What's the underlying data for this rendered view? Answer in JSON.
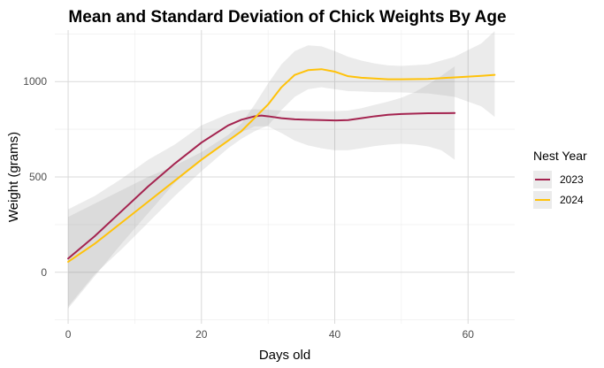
{
  "chart_data": {
    "type": "line",
    "title": "Mean and Standard Deviation of Chick Weights By Age",
    "xlabel": "Days old",
    "ylabel": "Weight (grams)",
    "xlim": [
      -2,
      67
    ],
    "ylim": [
      -270,
      1270
    ],
    "x_ticks": [
      0,
      20,
      40,
      60
    ],
    "y_ticks": [
      0,
      500,
      1000
    ],
    "grid": true,
    "legend": {
      "title": "Nest Year",
      "position": "right"
    },
    "series": [
      {
        "name": "2023",
        "color": "#A4234F",
        "points": [
          [
            0,
            72
          ],
          [
            4,
            190
          ],
          [
            8,
            320
          ],
          [
            12,
            450
          ],
          [
            16,
            570
          ],
          [
            20,
            680
          ],
          [
            24,
            770
          ],
          [
            26,
            800
          ],
          [
            28,
            818
          ],
          [
            29,
            822
          ],
          [
            30,
            818
          ],
          [
            32,
            808
          ],
          [
            34,
            802
          ],
          [
            36,
            800
          ],
          [
            38,
            798
          ],
          [
            40,
            796
          ],
          [
            42,
            798
          ],
          [
            44,
            808
          ],
          [
            46,
            818
          ],
          [
            48,
            826
          ],
          [
            50,
            830
          ],
          [
            54,
            834
          ],
          [
            58,
            835
          ]
        ],
        "ribbon_upper": [
          [
            0,
            330
          ],
          [
            4,
            400
          ],
          [
            8,
            490
          ],
          [
            12,
            590
          ],
          [
            16,
            670
          ],
          [
            20,
            770
          ],
          [
            24,
            830
          ],
          [
            26,
            850
          ],
          [
            28,
            855
          ],
          [
            30,
            852
          ],
          [
            32,
            848
          ],
          [
            34,
            846
          ],
          [
            36,
            845
          ],
          [
            38,
            845
          ],
          [
            40,
            845
          ],
          [
            42,
            848
          ],
          [
            44,
            860
          ],
          [
            46,
            878
          ],
          [
            48,
            895
          ],
          [
            50,
            915
          ],
          [
            52,
            945
          ],
          [
            54,
            985
          ],
          [
            56,
            1030
          ],
          [
            58,
            1080
          ]
        ],
        "ribbon_lower": [
          [
            0,
            -190
          ],
          [
            4,
            -20
          ],
          [
            8,
            150
          ],
          [
            12,
            310
          ],
          [
            16,
            470
          ],
          [
            20,
            590
          ],
          [
            24,
            690
          ],
          [
            26,
            735
          ],
          [
            28,
            765
          ],
          [
            30,
            765
          ],
          [
            32,
            730
          ],
          [
            34,
            690
          ],
          [
            36,
            665
          ],
          [
            38,
            650
          ],
          [
            40,
            640
          ],
          [
            42,
            640
          ],
          [
            44,
            650
          ],
          [
            46,
            662
          ],
          [
            48,
            670
          ],
          [
            50,
            674
          ],
          [
            52,
            670
          ],
          [
            54,
            660
          ],
          [
            56,
            640
          ],
          [
            58,
            590
          ]
        ]
      },
      {
        "name": "2024",
        "color": "#FFC20A",
        "points": [
          [
            0,
            55
          ],
          [
            4,
            150
          ],
          [
            8,
            260
          ],
          [
            12,
            370
          ],
          [
            16,
            480
          ],
          [
            20,
            590
          ],
          [
            24,
            690
          ],
          [
            26,
            740
          ],
          [
            28,
            810
          ],
          [
            30,
            880
          ],
          [
            32,
            970
          ],
          [
            34,
            1035
          ],
          [
            36,
            1060
          ],
          [
            38,
            1065
          ],
          [
            40,
            1052
          ],
          [
            42,
            1028
          ],
          [
            44,
            1020
          ],
          [
            46,
            1016
          ],
          [
            48,
            1012
          ],
          [
            50,
            1012
          ],
          [
            54,
            1014
          ],
          [
            58,
            1022
          ],
          [
            62,
            1030
          ],
          [
            64,
            1035
          ]
        ],
        "ribbon_upper": [
          [
            0,
            290
          ],
          [
            4,
            360
          ],
          [
            8,
            430
          ],
          [
            12,
            500
          ],
          [
            16,
            560
          ],
          [
            20,
            630
          ],
          [
            24,
            720
          ],
          [
            26,
            780
          ],
          [
            28,
            880
          ],
          [
            30,
            990
          ],
          [
            32,
            1090
          ],
          [
            34,
            1160
          ],
          [
            36,
            1190
          ],
          [
            38,
            1185
          ],
          [
            40,
            1160
          ],
          [
            42,
            1130
          ],
          [
            44,
            1110
          ],
          [
            46,
            1095
          ],
          [
            48,
            1085
          ],
          [
            50,
            1082
          ],
          [
            54,
            1090
          ],
          [
            58,
            1130
          ],
          [
            62,
            1200
          ],
          [
            64,
            1265
          ]
        ],
        "ribbon_lower": [
          [
            0,
            -180
          ],
          [
            4,
            -10
          ],
          [
            8,
            120
          ],
          [
            12,
            260
          ],
          [
            16,
            400
          ],
          [
            20,
            530
          ],
          [
            24,
            650
          ],
          [
            26,
            700
          ],
          [
            28,
            740
          ],
          [
            30,
            770
          ],
          [
            32,
            850
          ],
          [
            34,
            920
          ],
          [
            36,
            960
          ],
          [
            38,
            970
          ],
          [
            40,
            960
          ],
          [
            42,
            950
          ],
          [
            44,
            948
          ],
          [
            46,
            945
          ],
          [
            48,
            944
          ],
          [
            50,
            943
          ],
          [
            54,
            938
          ],
          [
            58,
            920
          ],
          [
            62,
            870
          ],
          [
            64,
            815
          ]
        ]
      }
    ]
  }
}
